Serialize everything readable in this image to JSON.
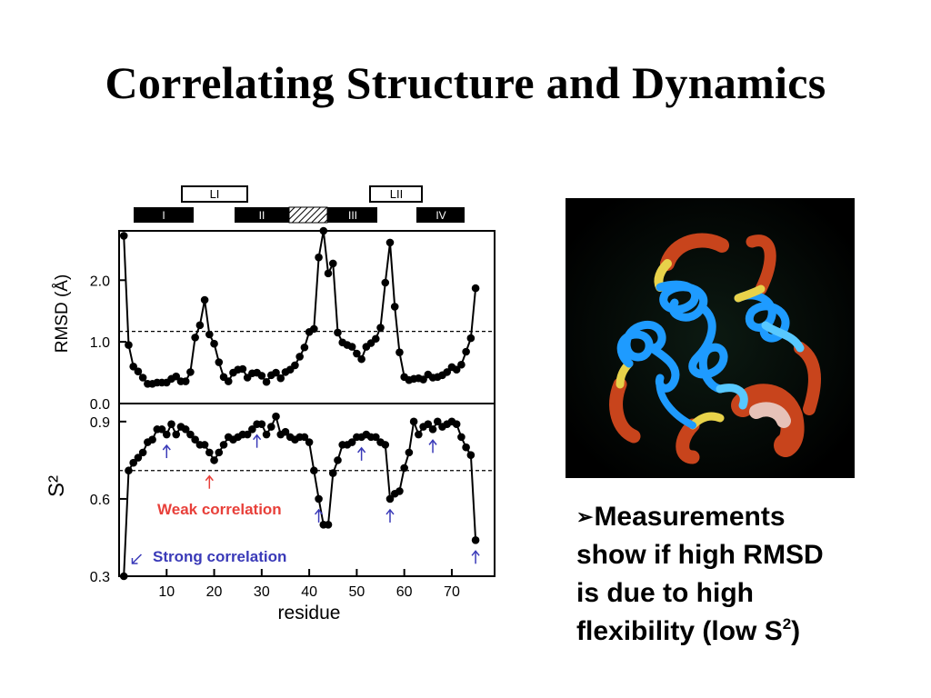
{
  "slide": {
    "title": "Correlating Structure and Dynamics",
    "bullet_marker": "➢",
    "bullet_lines": [
      "Measurements",
      "show if high RMSD",
      "is due to high"
    ],
    "bullet_last_text": "flexibility (low S",
    "bullet_last_sup": "2",
    "bullet_last_tail": ")"
  },
  "image": {
    "description_icon": "protein-ribbon-backbone",
    "colors": {
      "background": "#000000",
      "rigid": "#1e9bff",
      "flexible": "#c8441c",
      "transition": "#e8d24a"
    }
  },
  "chart_data": [
    {
      "type": "line",
      "title": "",
      "xlabel": "residue",
      "ylabel": "RMSD (Å)",
      "ylim": [
        0.0,
        2.8
      ],
      "xlim": [
        0,
        79
      ],
      "yticks": [
        "0.0",
        "1.0",
        "2.0"
      ],
      "ytick_values": [
        0.0,
        1.0,
        2.0
      ],
      "reference_line": 1.17,
      "series": [
        {
          "x": [
            1,
            2,
            3,
            4,
            5,
            6,
            7,
            8,
            9,
            10,
            11,
            12,
            13,
            14,
            15,
            16,
            17,
            18,
            19,
            20,
            21,
            22,
            23,
            24,
            25,
            26,
            27,
            28,
            29,
            30,
            31,
            32,
            33,
            34,
            35,
            36,
            37,
            38,
            39,
            40,
            41,
            42,
            43,
            44,
            45,
            46,
            47,
            48,
            49,
            50,
            51,
            52,
            53,
            54,
            55,
            56,
            57,
            58,
            59,
            60,
            61,
            62,
            63,
            64,
            65,
            66,
            67,
            68,
            69,
            70,
            71,
            72,
            73,
            74,
            75
          ],
          "y": [
            2.72,
            0.95,
            0.6,
            0.52,
            0.42,
            0.32,
            0.32,
            0.34,
            0.34,
            0.34,
            0.4,
            0.44,
            0.36,
            0.36,
            0.51,
            1.07,
            1.27,
            1.68,
            1.12,
            0.97,
            0.67,
            0.43,
            0.36,
            0.5,
            0.55,
            0.56,
            0.42,
            0.49,
            0.5,
            0.45,
            0.35,
            0.46,
            0.5,
            0.41,
            0.51,
            0.55,
            0.62,
            0.76,
            0.91,
            1.16,
            1.21,
            2.37,
            2.8,
            2.11,
            2.27,
            1.15,
            0.99,
            0.95,
            0.92,
            0.81,
            0.72,
            0.92,
            0.98,
            1.05,
            1.23,
            1.96,
            2.61,
            1.57,
            0.83,
            0.43,
            0.38,
            0.4,
            0.41,
            0.39,
            0.47,
            0.42,
            0.43,
            0.46,
            0.51,
            0.59,
            0.55,
            0.63,
            0.84,
            1.06,
            1.87
          ]
        }
      ]
    },
    {
      "type": "line",
      "title": "",
      "xlabel": "residue",
      "ylabel": "S²",
      "ylim": [
        0.3,
        0.97
      ],
      "xlim": [
        0,
        79
      ],
      "xticks": [
        10,
        20,
        30,
        40,
        50,
        60,
        70
      ],
      "yticks": [
        "0.3",
        "0.6",
        "0.9"
      ],
      "ytick_values": [
        0.3,
        0.6,
        0.9
      ],
      "reference_line": 0.71,
      "series": [
        {
          "x": [
            1,
            2,
            3,
            4,
            5,
            6,
            7,
            8,
            9,
            10,
            11,
            12,
            13,
            14,
            15,
            16,
            17,
            18,
            19,
            20,
            21,
            22,
            23,
            24,
            25,
            26,
            27,
            28,
            29,
            30,
            31,
            32,
            33,
            34,
            35,
            36,
            37,
            38,
            39,
            40,
            41,
            42,
            43,
            44,
            45,
            46,
            47,
            48,
            49,
            50,
            51,
            52,
            53,
            54,
            55,
            56,
            57,
            58,
            59,
            60,
            61,
            62,
            63,
            64,
            65,
            66,
            67,
            68,
            69,
            70,
            71,
            72,
            73,
            74,
            75
          ],
          "y": [
            0.3,
            0.71,
            0.74,
            0.76,
            0.78,
            0.82,
            0.83,
            0.87,
            0.87,
            0.85,
            0.89,
            0.85,
            0.88,
            0.87,
            0.85,
            0.83,
            0.81,
            0.81,
            0.78,
            0.75,
            0.78,
            0.81,
            0.84,
            0.83,
            0.84,
            0.85,
            0.85,
            0.87,
            0.89,
            0.89,
            0.85,
            0.88,
            0.92,
            0.85,
            0.86,
            0.84,
            0.83,
            0.84,
            0.84,
            0.82,
            0.71,
            0.6,
            0.5,
            0.5,
            0.7,
            0.75,
            0.81,
            0.81,
            0.82,
            0.84,
            0.84,
            0.85,
            0.84,
            0.84,
            0.82,
            0.81,
            0.6,
            0.62,
            0.63,
            0.72,
            0.78,
            0.9,
            0.85,
            0.88,
            0.89,
            0.87,
            0.9,
            0.88,
            0.89,
            0.9,
            0.89,
            0.84,
            0.8,
            0.77,
            0.44
          ]
        }
      ],
      "annotations": [
        {
          "text": "Weak correlation",
          "color": "#e8403a"
        },
        {
          "text": "Strong correlation",
          "color": "#3a3ab8"
        }
      ],
      "arrows": [
        {
          "x": 10,
          "color": "#3a3ab8"
        },
        {
          "x": 29,
          "color": "#3a3ab8"
        },
        {
          "x": 51,
          "color": "#3a3ab8"
        },
        {
          "x": 66,
          "color": "#3a3ab8"
        },
        {
          "x": 19,
          "color": "#e8403a"
        },
        {
          "x": 42,
          "color": "#3a3ab8"
        },
        {
          "x": 57,
          "color": "#3a3ab8"
        },
        {
          "x": 75,
          "color": "#3a3ab8"
        },
        {
          "x": 2,
          "color": "#3a3ab8"
        }
      ]
    }
  ],
  "secondary_structure": {
    "helices": [
      "I",
      "II",
      "III",
      "IV"
    ],
    "loops": [
      "LI",
      "LII"
    ]
  }
}
